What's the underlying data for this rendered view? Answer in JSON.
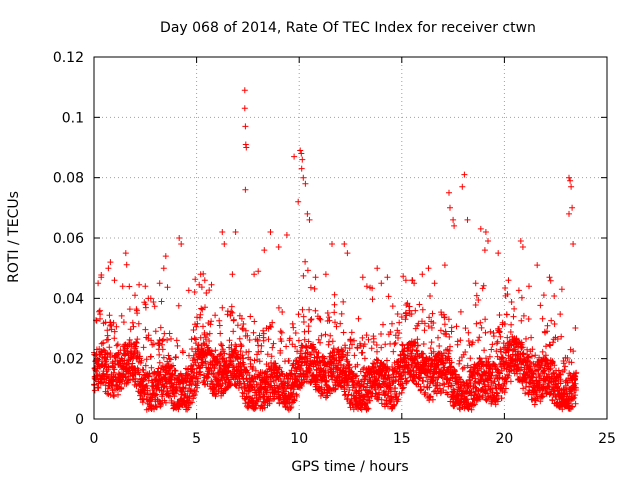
{
  "chart_data": {
    "type": "scatter",
    "title": "Day 068 of 2014, Rate Of TEC Index for receiver ctwn",
    "xlabel": "GPS time / hours",
    "ylabel": "ROTI / TECUs",
    "xlim": [
      0,
      25
    ],
    "ylim": [
      0,
      0.12
    ],
    "xticks": [
      0,
      5,
      10,
      15,
      20,
      25
    ],
    "yticks": [
      0,
      0.02,
      0.04,
      0.06,
      0.08,
      0.1,
      0.12
    ],
    "xtick_labels": [
      "0",
      "5",
      "10",
      "15",
      "20",
      "25"
    ],
    "ytick_labels": [
      "0",
      "0.02",
      "0.04",
      "0.06",
      "0.08",
      "0.1",
      "0.12"
    ],
    "grid": true,
    "marker": "+",
    "color": "#ff0000",
    "series": [
      {
        "name": "ROTI",
        "summary": "dense band of points between ~0.005 and ~0.03 TECU across 0–23.5 h",
        "x": [
          7.35,
          7.35,
          7.38,
          7.4,
          7.42,
          7.38,
          9.75,
          9.95,
          10.05,
          10.1,
          10.15,
          10.12,
          10.2,
          10.3,
          10.5,
          10.4,
          17.3,
          17.35,
          17.5,
          17.55,
          18.05,
          17.95,
          18.2,
          18.85,
          19.1,
          19.2,
          19.05,
          23.15,
          23.2,
          23.25,
          23.3,
          23.15,
          23.35,
          20.8,
          20.9,
          4.15,
          4.25,
          6.25,
          6.35,
          6.9,
          8.3,
          8.6,
          9.0,
          9.4,
          11.6,
          12.2,
          12.35,
          13.1,
          13.8,
          14.3,
          15.5,
          15.6,
          16.3,
          17.1,
          19.7,
          21.6,
          22.2,
          0.2,
          0.35,
          0.7,
          0.8,
          1.0,
          1.4,
          1.55,
          2.0,
          2.5,
          3.2,
          3.4,
          3.5,
          5.2,
          5.4,
          7.8,
          8.0,
          10.8,
          11.3,
          13.3,
          14.0,
          15.2,
          16.0,
          16.6,
          18.6,
          20.2,
          21.2,
          22.8
        ],
        "y": [
          0.109,
          0.103,
          0.097,
          0.091,
          0.09,
          0.076,
          0.087,
          0.072,
          0.089,
          0.088,
          0.086,
          0.083,
          0.08,
          0.078,
          0.066,
          0.068,
          0.075,
          0.07,
          0.066,
          0.064,
          0.081,
          0.077,
          0.066,
          0.063,
          0.062,
          0.059,
          0.056,
          0.08,
          0.079,
          0.077,
          0.07,
          0.068,
          0.058,
          0.059,
          0.057,
          0.06,
          0.058,
          0.062,
          0.058,
          0.062,
          0.056,
          0.062,
          0.057,
          0.061,
          0.058,
          0.058,
          0.055,
          0.047,
          0.05,
          0.047,
          0.046,
          0.045,
          0.05,
          0.051,
          0.055,
          0.051,
          0.047,
          0.045,
          0.047,
          0.05,
          0.052,
          0.046,
          0.044,
          0.055,
          0.041,
          0.044,
          0.045,
          0.05,
          0.054,
          0.048,
          0.046,
          0.048,
          0.049,
          0.047,
          0.048,
          0.044,
          0.045,
          0.046,
          0.048,
          0.045,
          0.045,
          0.046,
          0.044,
          0.043
        ]
      }
    ]
  }
}
